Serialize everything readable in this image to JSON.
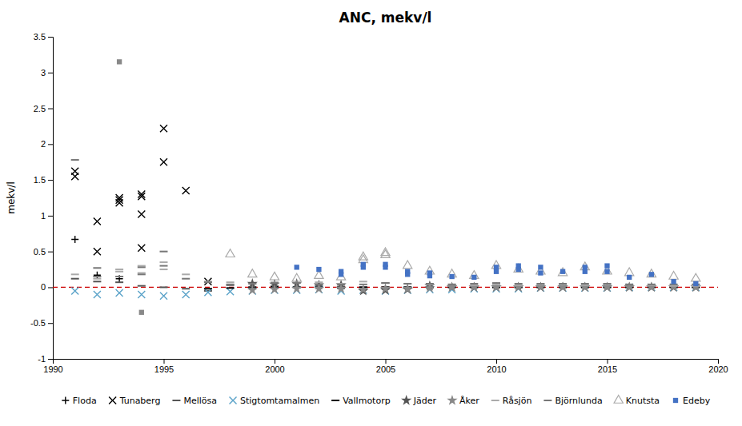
{
  "chart_data": {
    "type": "scatter",
    "title": "ANC, mekv/l",
    "ylabel": "mekv/l",
    "xlim": [
      1990,
      2020
    ],
    "ylim": [
      -1.0,
      3.5
    ],
    "xticks": [
      1990,
      1995,
      2000,
      2005,
      2010,
      2015,
      2020
    ],
    "yticks": [
      -1,
      -0.5,
      0,
      0.5,
      1,
      1.5,
      2,
      2.5,
      3,
      3.5
    ],
    "grid": false,
    "legend": "bottom",
    "hline": {
      "y": 0,
      "color": "#cc0000",
      "line_style": "dashed"
    },
    "series": [
      {
        "name": "Floda",
        "color": "#000000",
        "marker": "plus",
        "x": [
          1991,
          1992,
          1993
        ],
        "values": [
          0.67,
          0.17,
          0.12
        ]
      },
      {
        "name": "Tunaberg",
        "color": "#000000",
        "marker": "x",
        "x": [
          1991,
          1991,
          1992,
          1992,
          1993,
          1993,
          1993,
          1994,
          1994,
          1994,
          1994,
          1995,
          1995,
          1996,
          1997
        ],
        "values": [
          1.62,
          1.55,
          0.92,
          0.5,
          1.25,
          1.22,
          1.18,
          1.3,
          1.27,
          1.02,
          0.55,
          2.22,
          1.75,
          1.35,
          0.08
        ]
      },
      {
        "name": "Mellösa",
        "color": "#555555",
        "marker": "dash",
        "x": [
          1991,
          1992,
          1993,
          1994,
          1995,
          1996,
          1997,
          1998,
          1999,
          2000,
          2001,
          2002,
          2003,
          2004,
          2005,
          2006,
          2007,
          2008,
          2009,
          2010,
          2011,
          2012,
          2013,
          2014,
          2015,
          2016,
          2017,
          2018,
          2019
        ],
        "values": [
          0.12,
          0.08,
          0.07,
          0.02,
          0.0,
          -0.02,
          -0.05,
          0.03,
          0.0,
          0.01,
          0.0,
          0.02,
          0.01,
          0.0,
          0.0,
          0.0,
          0.0,
          0.0,
          0.0,
          0.0,
          0.0,
          0.0,
          0.0,
          0.0,
          0.0,
          0.0,
          0.0,
          0.0,
          0.0
        ]
      },
      {
        "name": "Stigtomtamalmen",
        "color": "#5ba3c9",
        "marker": "x",
        "x": [
          1991,
          1992,
          1993,
          1994,
          1995,
          1996,
          1997,
          1998,
          1999,
          2000,
          2001,
          2002,
          2003,
          2004,
          2005,
          2006,
          2007,
          2008,
          2009,
          2010,
          2011,
          2012,
          2013,
          2014,
          2015,
          2016,
          2017,
          2018,
          2019
        ],
        "values": [
          -0.05,
          -0.1,
          -0.08,
          -0.1,
          -0.12,
          -0.1,
          -0.07,
          -0.06,
          -0.05,
          -0.04,
          -0.04,
          -0.03,
          -0.05,
          -0.04,
          -0.05,
          -0.04,
          -0.03,
          -0.03,
          -0.02,
          -0.02,
          -0.02,
          -0.01,
          -0.01,
          -0.01,
          -0.01,
          0.0,
          0.0,
          0.0,
          0.0
        ]
      },
      {
        "name": "Vallmotorp",
        "color": "#000000",
        "marker": "dash",
        "x": [
          1997,
          1998,
          1999,
          2000,
          2001,
          2002,
          2003,
          2004,
          2005,
          2006,
          2007,
          2008,
          2009,
          2010,
          2011,
          2012,
          2013,
          2014,
          2015,
          2016,
          2017,
          2018,
          2019
        ],
        "values": [
          -0.02,
          -0.01,
          0.0,
          0.01,
          0.0,
          0.0,
          -0.01,
          0.0,
          0.0,
          0.0,
          0.0,
          0.0,
          0.0,
          0.0,
          0.0,
          0.0,
          0.0,
          0.0,
          0.0,
          0.0,
          0.0,
          0.0,
          0.0
        ]
      },
      {
        "name": "Jäder",
        "color": "#555555",
        "marker": "star",
        "x": [
          1999,
          2000,
          2001,
          2002,
          2003,
          2004,
          2005,
          2006,
          2007,
          2008,
          2009,
          2010,
          2011,
          2012,
          2013,
          2014,
          2015,
          2016,
          2017,
          2018,
          2019
        ],
        "values": [
          0.05,
          0.04,
          0.05,
          0.03,
          0.03,
          -0.05,
          -0.04,
          -0.03,
          0.02,
          0.0,
          0.0,
          0.0,
          0.0,
          0.0,
          0.0,
          0.0,
          0.0,
          0.0,
          0.0,
          0.0,
          0.0
        ]
      },
      {
        "name": "Åker",
        "color": "#888888",
        "marker": "star",
        "x": [
          1999,
          2000,
          2001,
          2002,
          2003,
          2004,
          2005,
          2006,
          2007,
          2008,
          2009,
          2010,
          2011,
          2012,
          2013,
          2014,
          2015,
          2016,
          2017,
          2018,
          2019
        ],
        "values": [
          -0.04,
          -0.03,
          -0.02,
          -0.02,
          -0.02,
          -0.03,
          -0.02,
          -0.02,
          -0.01,
          0.0,
          0.0,
          0.0,
          0.0,
          0.0,
          0.0,
          0.0,
          0.0,
          0.0,
          0.0,
          0.0,
          0.0
        ]
      },
      {
        "name": "Råsjön",
        "color": "#aaaaaa",
        "marker": "dash",
        "x": [
          1991,
          1992,
          1993,
          1993,
          1994,
          1994,
          1995,
          1995,
          1996,
          1997,
          1998,
          1999,
          2000,
          2001,
          2002,
          2003,
          2004,
          2005,
          2006,
          2007,
          2008,
          2009,
          2010,
          2011,
          2012,
          2013,
          2014,
          2015,
          2016,
          2017,
          2018,
          2019
        ],
        "values": [
          0.18,
          0.12,
          0.25,
          0.22,
          0.3,
          0.2,
          0.35,
          0.25,
          0.18,
          0.08,
          0.07,
          0.05,
          0.07,
          0.06,
          0.07,
          0.05,
          0.08,
          0.06,
          0.05,
          0.04,
          0.04,
          0.03,
          0.04,
          0.03,
          0.04,
          0.04,
          0.03,
          0.04,
          0.04,
          0.03,
          0.02,
          0.02
        ]
      },
      {
        "name": "Björnlunda",
        "color": "#777777",
        "marker": "dash",
        "x": [
          1991,
          1992,
          1992,
          1993,
          1994,
          1994,
          1995,
          1995,
          1996,
          1997,
          1998,
          1999,
          2000,
          2001,
          2002,
          2003,
          2004,
          2005,
          2005,
          2006,
          2007,
          2008,
          2009,
          2010,
          2011,
          2012,
          2013,
          2014,
          2015,
          2016,
          2017,
          2018,
          2019
        ],
        "values": [
          1.78,
          0.27,
          0.15,
          0.15,
          0.28,
          0.18,
          0.5,
          0.3,
          0.12,
          0.07,
          0.04,
          0.05,
          0.06,
          0.06,
          0.04,
          0.04,
          0.04,
          0.06,
          0.06,
          0.05,
          0.05,
          0.04,
          0.05,
          0.06,
          0.05,
          0.05,
          0.05,
          0.05,
          0.05,
          0.04,
          0.04,
          0.04,
          0.04
        ]
      },
      {
        "name": "Knutsta",
        "color": "#aaaaaa",
        "marker": "triangle-open",
        "x": [
          1998,
          1999,
          2000,
          2001,
          2002,
          2003,
          2004,
          2004,
          2005,
          2005,
          2006,
          2007,
          2008,
          2009,
          2010,
          2011,
          2012,
          2013,
          2014,
          2015,
          2016,
          2017,
          2018,
          2019
        ],
        "values": [
          0.46,
          0.18,
          0.14,
          0.12,
          0.16,
          0.14,
          0.38,
          0.42,
          0.48,
          0.45,
          0.3,
          0.22,
          0.18,
          0.16,
          0.3,
          0.25,
          0.22,
          0.2,
          0.28,
          0.22,
          0.2,
          0.18,
          0.15,
          0.12
        ]
      },
      {
        "name": "Edeby",
        "color": "#4472c4",
        "marker": "square",
        "x": [
          2001,
          2002,
          2003,
          2003,
          2004,
          2004,
          2005,
          2005,
          2006,
          2006,
          2007,
          2007,
          2008,
          2009,
          2010,
          2010,
          2011,
          2011,
          2012,
          2012,
          2013,
          2014,
          2014,
          2015,
          2015,
          2016,
          2017,
          2018,
          2019
        ],
        "values": [
          0.28,
          0.25,
          0.22,
          0.18,
          0.32,
          0.28,
          0.32,
          0.28,
          0.22,
          0.18,
          0.2,
          0.16,
          0.15,
          0.14,
          0.28,
          0.22,
          0.3,
          0.25,
          0.28,
          0.2,
          0.22,
          0.28,
          0.22,
          0.3,
          0.22,
          0.14,
          0.18,
          0.08,
          0.05
        ]
      },
      {
        "color": "#888888",
        "marker": "square",
        "x": [
          1993,
          1994
        ],
        "values": [
          3.15,
          -0.35
        ]
      }
    ]
  }
}
